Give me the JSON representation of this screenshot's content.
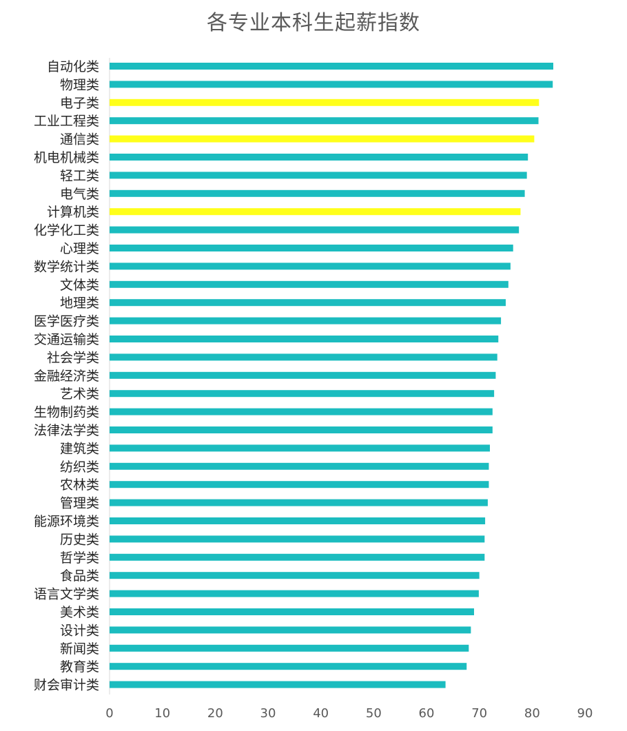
{
  "chart_data": {
    "type": "bar",
    "orientation": "horizontal",
    "title": "各专业本科生起薪指数",
    "xlabel": "",
    "ylabel": "",
    "xlim": [
      0,
      90
    ],
    "xticks": [
      0,
      10,
      20,
      30,
      40,
      50,
      60,
      70,
      80,
      90
    ],
    "grid": false,
    "legend": "none",
    "colors": {
      "default": "#1BBCBF",
      "highlight": "#FFFF1A"
    },
    "categories": [
      "自动化类",
      "物理类",
      "电子类",
      "工业工程类",
      "通信类",
      "机电机械类",
      "轻工类",
      "电气类",
      "计算机类",
      "化学化工类",
      "心理类",
      "数学统计类",
      "文体类",
      "地理类",
      "医学医疗类",
      "交通运输类",
      "社会学类",
      "金融经济类",
      "艺术类",
      "生物制药类",
      "法律法学类",
      "建筑类",
      "纺织类",
      "农林类",
      "管理类",
      "能源环境类",
      "历史类",
      "哲学类",
      "食品类",
      "语言文学类",
      "美术类",
      "设计类",
      "新闻类",
      "教育类",
      "财会审计类"
    ],
    "values": [
      84.0,
      83.9,
      81.3,
      81.2,
      80.4,
      79.2,
      79.0,
      78.6,
      77.8,
      77.5,
      76.4,
      75.9,
      75.5,
      75.0,
      74.1,
      73.6,
      73.4,
      73.1,
      72.8,
      72.5,
      72.5,
      72.0,
      71.8,
      71.8,
      71.6,
      71.1,
      71.0,
      71.0,
      70.0,
      69.9,
      69.0,
      68.4,
      68.0,
      67.6,
      63.6
    ],
    "highlighted": [
      "电子类",
      "通信类",
      "计算机类"
    ]
  }
}
